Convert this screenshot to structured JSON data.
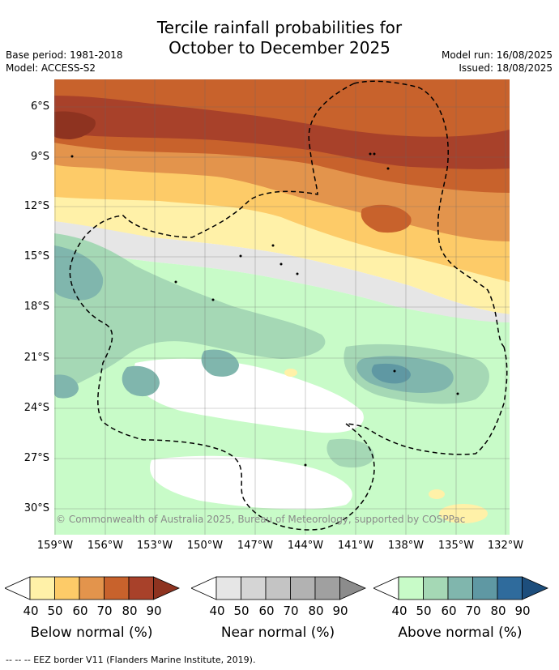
{
  "header": {
    "title_line1": "Tercile rainfall probabilities for",
    "title_line2": "October to December 2025",
    "base_period": "Base period: 1981-2018",
    "model": "Model: ACCESS-S2",
    "model_run": "Model run: 16/08/2025",
    "issued": "Issued: 18/08/2025"
  },
  "map": {
    "lat_labels": [
      "6°S",
      "9°S",
      "12°S",
      "15°S",
      "18°S",
      "21°S",
      "24°S",
      "27°S",
      "30°S"
    ],
    "lon_labels": [
      "159°W",
      "156°W",
      "153°W",
      "150°W",
      "147°W",
      "144°W",
      "141°W",
      "138°W",
      "135°W",
      "132°W"
    ],
    "copyright": "© Commonwealth of Australia 2025, Bureau of Meteorology, supported by COSPPac"
  },
  "legend": {
    "ticks": [
      "40",
      "50",
      "60",
      "70",
      "80",
      "90"
    ],
    "below": {
      "title": "Below normal (%)",
      "colors": [
        "#fff1a8",
        "#fdcb68",
        "#e3944c",
        "#c8622c",
        "#a8412a",
        "#8e3320"
      ]
    },
    "near": {
      "title": "Near normal (%)",
      "colors": [
        "#e6e6e6",
        "#d5d5d5",
        "#c4c4c4",
        "#b2b2b2",
        "#a0a0a0",
        "#8c8c8c"
      ]
    },
    "above": {
      "title": "Above normal (%)",
      "colors": [
        "#c8fbc8",
        "#a5d8b5",
        "#80b6ad",
        "#5f98a3",
        "#2f6b9c",
        "#1d4e7c"
      ]
    }
  },
  "footer": "--  --  -- EEZ border V11 (Flanders Marine Institute, 2019)."
}
